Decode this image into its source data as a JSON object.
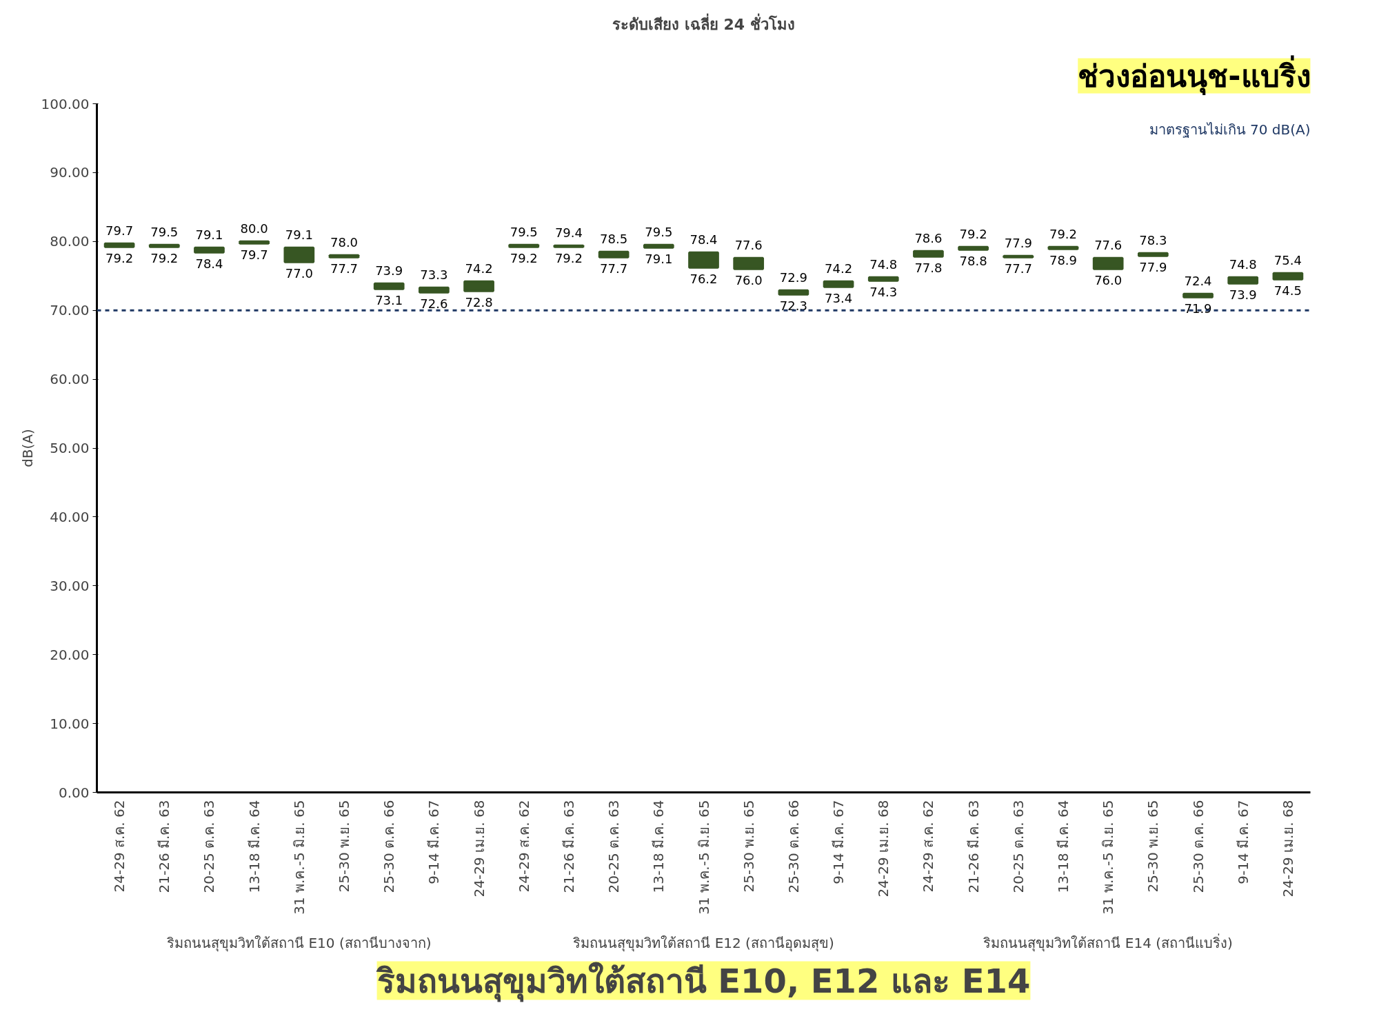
{
  "chart_data": {
    "type": "bar",
    "title": "ระดับเสียง เฉลี่ย 24 ชั่วโมง",
    "ylabel": "dB(A)",
    "categories": [
      "24-29 ส.ค. 62",
      "21-26 มี.ค. 63",
      "20-25 ต.ค. 63",
      "13-18 มี.ค. 64",
      "31 พ.ค.-5 มิ.ย. 65",
      "25-30 พ.ย. 65",
      "25-30 ต.ค. 66",
      "9-14 มี.ค. 67",
      "24-29 เม.ย. 68",
      "24-29 ส.ค. 62",
      "21-26 มี.ค. 63",
      "20-25 ต.ค. 63",
      "13-18 มี.ค. 64",
      "31 พ.ค.-5 มิ.ย. 65",
      "25-30 พ.ย. 65",
      "25-30 ต.ค. 66",
      "9-14 มี.ค. 67",
      "24-29 เม.ย. 68",
      "24-29 ส.ค. 62",
      "21-26 มี.ค. 63",
      "20-25 ต.ค. 63",
      "13-18 มี.ค. 64",
      "31 พ.ค.-5 มิ.ย. 65",
      "25-30 พ.ย. 65",
      "25-30 ต.ค. 66",
      "9-14 มี.ค. 67",
      "24-29 เม.ย. 68"
    ],
    "base": [
      79.2,
      79.2,
      78.4,
      79.7,
      77.0,
      77.7,
      73.1,
      72.6,
      72.8,
      79.2,
      79.2,
      77.7,
      79.1,
      76.2,
      76.0,
      72.3,
      73.4,
      74.3,
      77.8,
      78.8,
      77.7,
      78.9,
      76.0,
      77.9,
      71.9,
      73.9,
      74.5
    ],
    "values": [
      0.5,
      0.3,
      0.7,
      0.3,
      2.1,
      0.3,
      0.8,
      0.7,
      1.4,
      0.3,
      0.2,
      0.8,
      0.4,
      2.2,
      1.6,
      0.6,
      0.8,
      0.5,
      0.8,
      0.4,
      0.2,
      0.3,
      1.6,
      0.4,
      0.5,
      0.9,
      0.9
    ],
    "value_labels": [
      "79.7",
      "79.5",
      "79.1",
      "80.0",
      "79.1",
      "78.0",
      "73.9",
      "73.3",
      "74.2",
      "79.5",
      "79.4",
      "78.5",
      "79.5",
      "78.4",
      "77.6",
      "72.9",
      "74.2",
      "74.8",
      "78.6",
      "79.2",
      "77.9",
      "79.2",
      "77.6",
      "78.3",
      "72.4",
      "74.8",
      "75.4"
    ],
    "color": "#375623",
    "ylim": [
      0,
      100
    ],
    "yticks": [
      {
        "value": 0,
        "label": "0.00"
      },
      {
        "value": 10,
        "label": "10.00"
      },
      {
        "value": 20,
        "label": "20.00"
      },
      {
        "value": 30,
        "label": "30.00"
      },
      {
        "value": 40,
        "label": "40.00"
      },
      {
        "value": 50,
        "label": "50.00"
      },
      {
        "value": 60,
        "label": "60.00"
      },
      {
        "value": 70,
        "label": "70.00"
      },
      {
        "value": 80,
        "label": "80.00"
      },
      {
        "value": 90,
        "label": "90.00"
      },
      {
        "value": 100,
        "label": "100.00"
      }
    ],
    "ref_lines": [
      {
        "axis": "y",
        "value": 70,
        "label": "มาตรฐานไม่เกิน 70 dB(A)",
        "color": "#1f3864",
        "line_style": "dashed"
      }
    ],
    "grid": false,
    "annotations": [
      "ช่วงอ่อนนุช-แบริ่ง",
      "ริมถนนสุขุมวิทใต้สถานี E10 (สถานีบางจาก)",
      "ริมถนนสุขุมวิทใต้สถานี E12 (สถานีอุดมสุข)",
      "ริมถนนสุขุมวิทใต้สถานี E14 (สถานีแบริ่ง)",
      "ริมถนนสุขุมวิทใต้สถานี E10, E12 และ E14",
      {
        "text": "79.2",
        "y": 79.2
      },
      {
        "text": "79.2",
        "y": 79.2
      },
      {
        "text": "78.4",
        "y": 78.4
      },
      {
        "text": "79.7",
        "y": 79.7
      },
      {
        "text": "77.0",
        "y": 77.0
      },
      {
        "text": "77.7",
        "y": 77.7
      },
      {
        "text": "73.1",
        "y": 73.1
      },
      {
        "text": "72.6",
        "y": 72.6
      },
      {
        "text": "72.8",
        "y": 72.8
      },
      {
        "text": "79.2",
        "y": 79.2
      },
      {
        "text": "79.2",
        "y": 79.2
      },
      {
        "text": "77.7",
        "y": 77.7
      },
      {
        "text": "79.1",
        "y": 79.1
      },
      {
        "text": "76.2",
        "y": 76.2
      },
      {
        "text": "76.0",
        "y": 76.0
      },
      {
        "text": "72.3",
        "y": 72.3
      },
      {
        "text": "73.4",
        "y": 73.4
      },
      {
        "text": "74.3",
        "y": 74.3
      },
      {
        "text": "77.8",
        "y": 77.8
      },
      {
        "text": "78.8",
        "y": 78.8
      },
      {
        "text": "77.7",
        "y": 77.7
      },
      {
        "text": "78.9",
        "y": 78.9
      },
      {
        "text": "76.0",
        "y": 76.0
      },
      {
        "text": "77.9",
        "y": 77.9
      },
      {
        "text": "71.9",
        "y": 71.9
      },
      {
        "text": "73.9",
        "y": 73.9
      },
      {
        "text": "74.5",
        "y": 74.5
      }
    ]
  }
}
